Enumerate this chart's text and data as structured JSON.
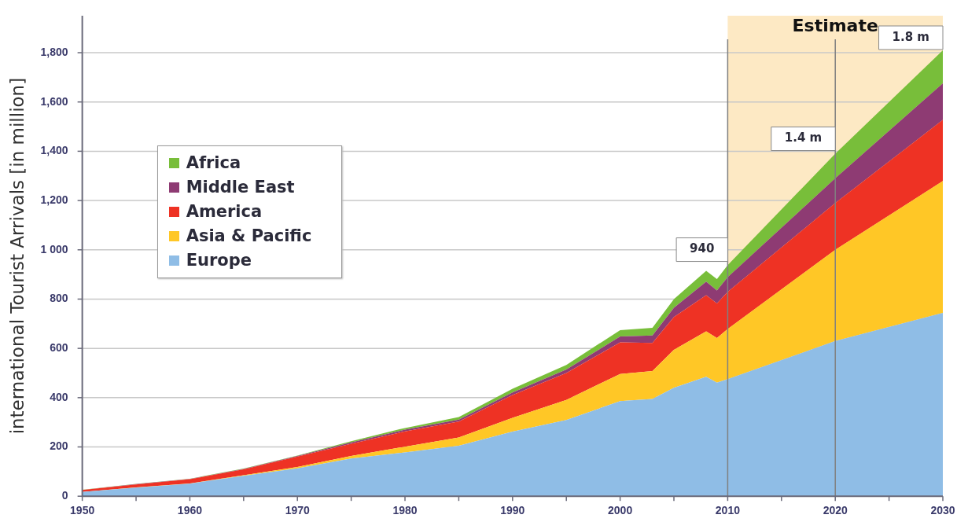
{
  "chart_data": {
    "type": "area",
    "stacked": true,
    "ylabel": "international Tourist Arrivals [in million]",
    "x": [
      1950,
      1955,
      1960,
      1965,
      1970,
      1975,
      1980,
      1985,
      1990,
      1995,
      2000,
      2003,
      2005,
      2008,
      2009,
      2010,
      2020,
      2030
    ],
    "series": [
      {
        "name": "Europe",
        "color": "#8fbde6",
        "values": [
          17,
          35,
          51,
          83,
          113,
          153,
          178,
          205,
          262,
          309,
          386,
          395,
          440,
          485,
          461,
          475,
          630,
          744
        ]
      },
      {
        "name": "Asia & Pacific",
        "color": "#ffc726",
        "values": [
          0,
          1,
          1,
          2,
          6,
          10,
          23,
          33,
          56,
          82,
          110,
          113,
          154,
          184,
          181,
          204,
          370,
          535
        ]
      },
      {
        "name": "America",
        "color": "#ee3224",
        "values": [
          8,
          12,
          17,
          24,
          42,
          50,
          62,
          65,
          93,
          109,
          128,
          114,
          133,
          147,
          140,
          150,
          190,
          248
        ]
      },
      {
        "name": "Middle East",
        "color": "#8e3b73",
        "values": [
          0,
          1,
          1,
          2,
          2,
          5,
          7,
          8,
          10,
          14,
          24,
          30,
          38,
          55,
          53,
          60,
          100,
          149
        ]
      },
      {
        "name": "Africa",
        "color": "#78be3a",
        "values": [
          1,
          1,
          1,
          1,
          2,
          5,
          7,
          10,
          15,
          19,
          26,
          31,
          35,
          44,
          46,
          49,
          100,
          134
        ]
      }
    ],
    "xlim": [
      1950,
      2030
    ],
    "xticks": [
      1950,
      {
        "value": 1955,
        "label": null
      },
      1960,
      {
        "value": 1965,
        "label": null
      },
      1970,
      {
        "value": 1975,
        "label": null
      },
      1980,
      {
        "value": 1985,
        "label": null
      },
      1990,
      {
        "value": 1995,
        "label": null
      },
      2000,
      {
        "value": 2005,
        "label": null
      },
      2010,
      {
        "value": 2015,
        "label": null
      },
      2020,
      {
        "value": 2025,
        "label": null
      },
      2030
    ],
    "ylim": [
      0,
      1950
    ],
    "yticks": [
      0,
      200,
      400,
      600,
      800,
      {
        "value": 1000,
        "label": "1 000"
      },
      {
        "value": 1200,
        "label": "1,200"
      },
      {
        "value": 1400,
        "label": "1,400"
      },
      {
        "value": 1600,
        "label": "1,600"
      },
      {
        "value": 1800,
        "label": "1,800"
      }
    ],
    "grid": "y",
    "legend": "left",
    "bands": [
      {
        "axis": "x",
        "from": 2010,
        "to": 2030,
        "label": "Estimate",
        "color": "#fde9c4"
      }
    ],
    "ref_lines": [
      {
        "axis": "x",
        "value": 2010,
        "color": "#808080"
      },
      {
        "axis": "x",
        "value": 2020,
        "color": "#808080"
      }
    ],
    "annotations": [
      {
        "text": "940",
        "x": 2010,
        "y": 940
      },
      {
        "text": "1.4 m",
        "x": 2020,
        "y": 1390
      },
      {
        "text": "1.8 m",
        "x": 2030,
        "y": 1800
      }
    ]
  }
}
